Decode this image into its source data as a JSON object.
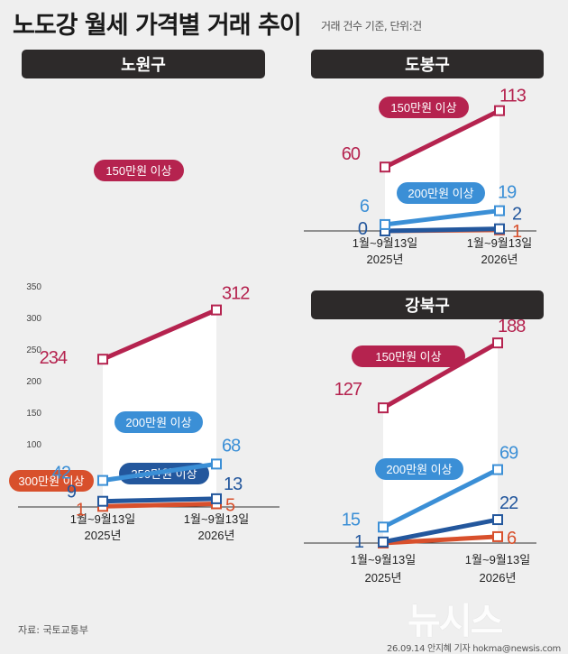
{
  "title": "노도강 월세 가격별 거래 추이",
  "basis_note": "거래 건수 기준, 단위:건",
  "source": "자료: 국토교통부",
  "credit": "26.09.14 안지혜 기자  hokma@newsis.com",
  "logo_text": "뉴시스",
  "colors": {
    "over_150": "#b5234f",
    "over_200": "#3b8fd6",
    "over_250": "#23579d",
    "over_300": "#d8502c",
    "panel_header": "#2d2a2a"
  },
  "chart_data": [
    {
      "type": "line",
      "panel": "노원구",
      "categories": [
        [
          "1월~9월13일",
          "2025년"
        ],
        [
          "1월~9월13일",
          "2026년"
        ]
      ],
      "yticks": [
        350,
        300,
        250,
        200,
        150,
        100,
        50
      ],
      "ylim": [
        0,
        370
      ],
      "grid": false,
      "series": [
        {
          "name": "150만원 이상",
          "values": [
            234,
            312
          ],
          "color": "#b5234f"
        },
        {
          "name": "200만원 이상",
          "values": [
            42,
            68
          ],
          "color": "#3b8fd6"
        },
        {
          "name": "250만원 이상",
          "values": [
            9,
            13
          ],
          "color": "#23579d"
        },
        {
          "name": "300만원 이상",
          "values": [
            1,
            5
          ],
          "color": "#d8502c"
        }
      ]
    },
    {
      "type": "line",
      "panel": "도봉구",
      "categories": [
        [
          "1월~9월13일",
          "2025년"
        ],
        [
          "1월~9월13일",
          "2026년"
        ]
      ],
      "series": [
        {
          "name": "150만원 이상",
          "values": [
            60,
            113
          ],
          "color": "#b5234f"
        },
        {
          "name": "200만원 이상",
          "values": [
            6,
            19
          ],
          "color": "#3b8fd6"
        },
        {
          "name": "250만원 이상",
          "values": [
            0,
            2
          ],
          "color": "#23579d"
        },
        {
          "name": "300만원 이상",
          "values": [
            0,
            1
          ],
          "color": "#d8502c"
        }
      ]
    },
    {
      "type": "line",
      "panel": "강북구",
      "categories": [
        [
          "1월~9월13일",
          "2025년"
        ],
        [
          "1월~9월13일",
          "2026년"
        ]
      ],
      "series": [
        {
          "name": "150만원 이상",
          "values": [
            127,
            188
          ],
          "color": "#b5234f"
        },
        {
          "name": "200만원 이상",
          "values": [
            15,
            69
          ],
          "color": "#3b8fd6"
        },
        {
          "name": "250만원 이상",
          "values": [
            1,
            22
          ],
          "color": "#23579d"
        },
        {
          "name": "300만원 이상",
          "values": [
            0,
            6
          ],
          "color": "#d8502c"
        }
      ]
    }
  ]
}
